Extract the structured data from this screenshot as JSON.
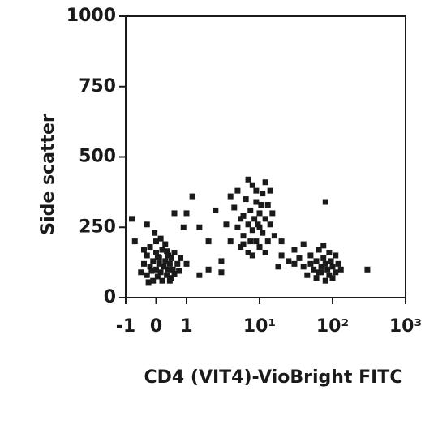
{
  "chart_data": {
    "type": "scatter",
    "xlabel": "CD4 (VIT4)-VioBright FITC",
    "ylabel": "Side scatter",
    "xscale": "biexponential",
    "color": "#1a1a1a",
    "xlim": [
      -1,
      1000
    ],
    "xticks": [
      -1,
      0,
      1,
      {
        "value": 10,
        "label": "10¹"
      },
      {
        "value": 100,
        "label": "10²"
      },
      {
        "value": 1000,
        "label": "10³"
      }
    ],
    "ylim": [
      0,
      1000
    ],
    "yticks": [
      0,
      250,
      500,
      750,
      1000
    ],
    "x": [
      -0.5,
      -0.4,
      -0.3,
      -0.3,
      -0.2,
      -0.2,
      -0.1,
      -0.1,
      0,
      0,
      0,
      0.05,
      0.1,
      0.1,
      0.15,
      0.2,
      0.2,
      0.25,
      0.3,
      0.3,
      0.35,
      0.4,
      0.4,
      0.45,
      0.5,
      0.5,
      0.55,
      0.6,
      0.6,
      0.7,
      0.75,
      0.8,
      -0.4,
      -0.25,
      0.15,
      -0.15,
      0.05,
      0.35,
      0.45,
      -0.05,
      4,
      4.5,
      5,
      5,
      5.5,
      6,
      6,
      6.5,
      7,
      7,
      7.5,
      8,
      8,
      8.5,
      9,
      9,
      9.5,
      10,
      10,
      11,
      11,
      12,
      12,
      13,
      13,
      14,
      15,
      16,
      6,
      7,
      8,
      9,
      10,
      5.5,
      4,
      12,
      3.5,
      14,
      7.5,
      10.5,
      40,
      45,
      50,
      55,
      60,
      60,
      65,
      70,
      70,
      75,
      80,
      80,
      85,
      90,
      90,
      95,
      100,
      110,
      110,
      120,
      50,
      65,
      75,
      100,
      130,
      1,
      1.5,
      1,
      2,
      2,
      3,
      1.2,
      -0.8,
      0.6,
      3,
      20,
      25,
      30,
      20,
      30,
      35,
      2.5,
      18,
      0.9,
      -0.7,
      1.5,
      80,
      300,
      -0.3,
      40
    ],
    "y": [
      90,
      120,
      150,
      80,
      110,
      180,
      60,
      130,
      100,
      160,
      200,
      75,
      120,
      140,
      90,
      170,
      60,
      110,
      130,
      190,
      80,
      100,
      150,
      120,
      70,
      140,
      100,
      160,
      85,
      120,
      95,
      140,
      170,
      55,
      210,
      95,
      145,
      165,
      60,
      230,
      200,
      320,
      250,
      380,
      180,
      290,
      220,
      350,
      260,
      160,
      310,
      240,
      400,
      280,
      200,
      340,
      260,
      300,
      180,
      370,
      230,
      280,
      410,
      200,
      330,
      260,
      300,
      220,
      190,
      420,
      150,
      380,
      250,
      280,
      360,
      160,
      260,
      380,
      200,
      330,
      110,
      80,
      150,
      100,
      130,
      70,
      170,
      110,
      90,
      140,
      60,
      120,
      100,
      160,
      80,
      130,
      110,
      90,
      150,
      120,
      120,
      90,
      185,
      70,
      100,
      300,
      250,
      120,
      100,
      200,
      130,
      360,
      280,
      300,
      90,
      150,
      130,
      120,
      200,
      170,
      140,
      310,
      110,
      250,
      200,
      80,
      340,
      100,
      260,
      190
    ]
  }
}
